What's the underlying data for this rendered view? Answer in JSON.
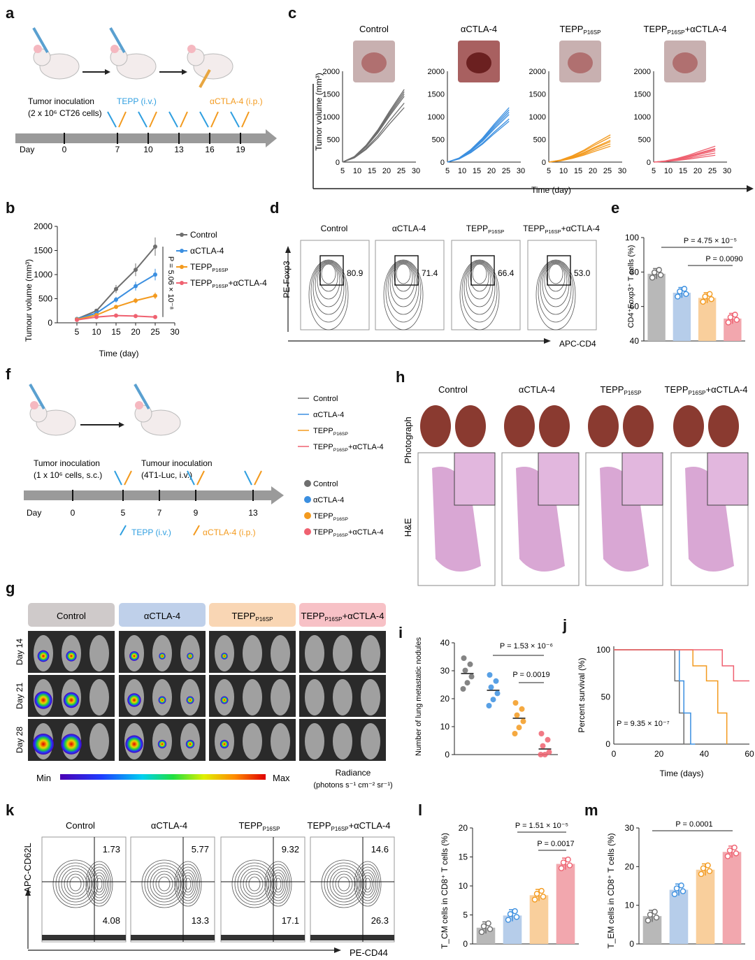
{
  "panel_labels": {
    "a": "a",
    "b": "b",
    "c": "c",
    "d": "d",
    "e": "e",
    "f": "f",
    "g": "g",
    "h": "h",
    "i": "i",
    "j": "j",
    "k": "k",
    "l": "l",
    "m": "m"
  },
  "groups": [
    "Control",
    "αCTLA-4",
    "TEPP_P16SP",
    "TEPP_P16SP+αCTLA-4"
  ],
  "colors": {
    "control": "#6e6e6e",
    "actla4": "#3b8fe0",
    "tepp": "#f39a1e",
    "combo": "#ef6170",
    "gray_bar": "#b8b8b8",
    "blue_bar": "#b6cdea",
    "orange_bar": "#f9cf9c",
    "red_bar": "#f2a7ae"
  },
  "panel_a": {
    "tumor_inoculation": "Tumor inoculation",
    "cells": "(2 x 10⁶ CT26 cells)",
    "tepp": "TEPP (i.v.)",
    "actla4": "αCTLA-4 (i.p.)",
    "day_label": "Day",
    "days": [
      "0",
      "7",
      "10",
      "13",
      "16",
      "19"
    ]
  },
  "panel_b": {
    "ylabel": "Tumour volume (mm³)",
    "xlabel": "Time (day)",
    "pvalue": "P = 5.06 × 10⁻⁸",
    "legend": [
      "Control",
      "αCTLA-4",
      "TEPP_P16SP",
      "TEPP_P16SP+αCTLA-4"
    ]
  },
  "panel_c": {
    "titles": [
      "Control",
      "αCTLA-4",
      "TEPP_P16SP",
      "TEPP_P16SP+αCTLA-4"
    ],
    "ylabel": "Tumor volume (mm³)",
    "xlabel": "Time (day)"
  },
  "panel_d": {
    "titles": [
      "Control",
      "αCTLA-4",
      "TEPP_P16SP",
      "TEPP_P16SP+αCTLA-4"
    ],
    "values": [
      "80.9",
      "71.4",
      "66.4",
      "53.0"
    ],
    "ylabel": "PE-Foxp3",
    "xlabel": "APC-CD4"
  },
  "panel_e": {
    "ylabel": "CD4⁺Foxp3⁺ T cells (%)",
    "p1": "P = 4.75 × 10⁻⁵",
    "p2": "P = 0.0090"
  },
  "panel_f": {
    "tumor_inoculation_1": "Tumor inoculation",
    "cells_1": "(1 x 10⁶ cells, s.c.)",
    "tumor_inoculation_2": "Tumour inoculation",
    "cells_2": "(4T1-Luc, i.v.)",
    "day_label": "Day",
    "days": [
      "0",
      "5",
      "7",
      "9",
      "13"
    ],
    "tepp": "TEPP (i.v.)",
    "actla4": "αCTLA-4 (i.p.)",
    "legend": [
      "Control",
      "αCTLA-4",
      "TEPP_P16SP",
      "TEPP_P16SP+αCTLA-4"
    ]
  },
  "panel_g": {
    "headers": [
      "Control",
      "αCTLA-4",
      "TEPP_P16SP",
      "TEPP_P16SP+αCTLA-4"
    ],
    "rows": [
      "Day 14",
      "Day 21",
      "Day 28"
    ],
    "min": "Min",
    "max": "Max",
    "radiance": "Radiance",
    "radiance_units": "(photons s⁻¹ cm⁻² sr⁻¹)"
  },
  "panel_h": {
    "titles": [
      "Control",
      "αCTLA-4",
      "TEPP_P16SP",
      "TEPP_P16SP+αCTLA-4"
    ],
    "row1": "Photograph",
    "row2": "H&E"
  },
  "panel_i": {
    "ylabel": "Number of lung metastatic nodules",
    "p1": "P = 1.53 × 10⁻⁶",
    "p2": "P = 0.0019"
  },
  "panel_j": {
    "ylabel": "Percent survival (%)",
    "xlabel": "Time (days)",
    "pvalue": "P = 9.35 × 10⁻⁷"
  },
  "panel_k": {
    "titles": [
      "Control",
      "αCTLA-4",
      "TEPP_P16SP",
      "TEPP_P16SP+αCTLA-4"
    ],
    "upper": [
      "1.73",
      "5.77",
      "9.32",
      "14.6"
    ],
    "lower": [
      "4.08",
      "13.3",
      "17.1",
      "26.3"
    ],
    "ylabel": "APC-CD62L",
    "xlabel": "PE-CD44"
  },
  "panel_l": {
    "ylabel": "T_CM cells in CD8⁺ T cells (%)",
    "p1": "P = 1.51 × 10⁻⁵",
    "p2": "P = 0.0017"
  },
  "panel_m": {
    "ylabel": "T_EM cells in CD8⁺ T cells (%)",
    "p1": "P = 0.0001"
  },
  "chart_data": [
    {
      "panel": "b",
      "type": "line",
      "x": [
        5,
        10,
        15,
        20,
        25
      ],
      "xlabel": "Time (day)",
      "ylabel": "Tumour volume (mm³)",
      "xlim": [
        0,
        30
      ],
      "ylim": [
        0,
        2000
      ],
      "series": [
        {
          "name": "Control",
          "values": [
            80,
            250,
            700,
            1100,
            1580
          ]
        },
        {
          "name": "αCTLA-4",
          "values": [
            80,
            200,
            480,
            760,
            1000
          ]
        },
        {
          "name": "TEPP_P16SP",
          "values": [
            70,
            160,
            330,
            460,
            560
          ]
        },
        {
          "name": "TEPP_P16SP+αCTLA-4",
          "values": [
            60,
            120,
            150,
            140,
            120
          ]
        }
      ]
    },
    {
      "panel": "e",
      "type": "bar",
      "categories": [
        "Control",
        "αCTLA-4",
        "TEPP_P16SP",
        "TEPP_P16SP+αCTLA-4"
      ],
      "values": [
        79,
        68,
        65,
        53
      ],
      "ylabel": "CD4⁺Foxp3⁺ T cells (%)",
      "ylim": [
        40,
        100
      ]
    },
    {
      "panel": "i",
      "type": "scatter",
      "categories": [
        "Control",
        "αCTLA-4",
        "TEPP_P16SP",
        "TEPP_P16SP+αCTLA-4"
      ],
      "values": [
        29,
        23,
        13,
        2
      ],
      "ylabel": "Number of lung metastatic nodules",
      "ylim": [
        0,
        40
      ]
    },
    {
      "panel": "j",
      "type": "line",
      "xlabel": "Time (days)",
      "ylabel": "Percent survival (%)",
      "xlim": [
        0,
        60
      ],
      "ylim": [
        0,
        100
      ],
      "series": [
        {
          "name": "Control",
          "x": [
            0,
            27,
            27,
            29,
            29,
            31,
            31,
            33
          ],
          "values": [
            100,
            100,
            67,
            67,
            33,
            33,
            0,
            0
          ]
        },
        {
          "name": "αCTLA-4",
          "x": [
            0,
            29,
            29,
            31,
            31,
            34,
            34,
            36
          ],
          "values": [
            100,
            100,
            67,
            67,
            33,
            33,
            0,
            0
          ]
        },
        {
          "name": "TEPP_P16SP",
          "x": [
            0,
            35,
            35,
            41,
            41,
            46,
            46,
            50,
            50
          ],
          "values": [
            100,
            100,
            83,
            83,
            67,
            67,
            33,
            33,
            0
          ]
        },
        {
          "name": "TEPP_P16SP+αCTLA-4",
          "x": [
            0,
            48,
            48,
            53,
            53,
            60
          ],
          "values": [
            100,
            100,
            83,
            83,
            67,
            67
          ]
        }
      ]
    },
    {
      "panel": "l",
      "type": "bar",
      "categories": [
        "Control",
        "αCTLA-4",
        "TEPP_P16SP",
        "TEPP_P16SP+αCTLA-4"
      ],
      "values": [
        2.8,
        4.9,
        8.4,
        13.8
      ],
      "ylabel": "T_CM cells in CD8⁺ T cells (%)",
      "ylim": [
        0,
        20
      ]
    },
    {
      "panel": "m",
      "type": "bar",
      "categories": [
        "Control",
        "αCTLA-4",
        "TEPP_P16SP",
        "TEPP_P16SP+αCTLA-4"
      ],
      "values": [
        7.2,
        14,
        19.2,
        23.8
      ],
      "ylabel": "T_EM cells in CD8⁺ T cells (%)",
      "ylim": [
        0,
        30
      ]
    }
  ]
}
